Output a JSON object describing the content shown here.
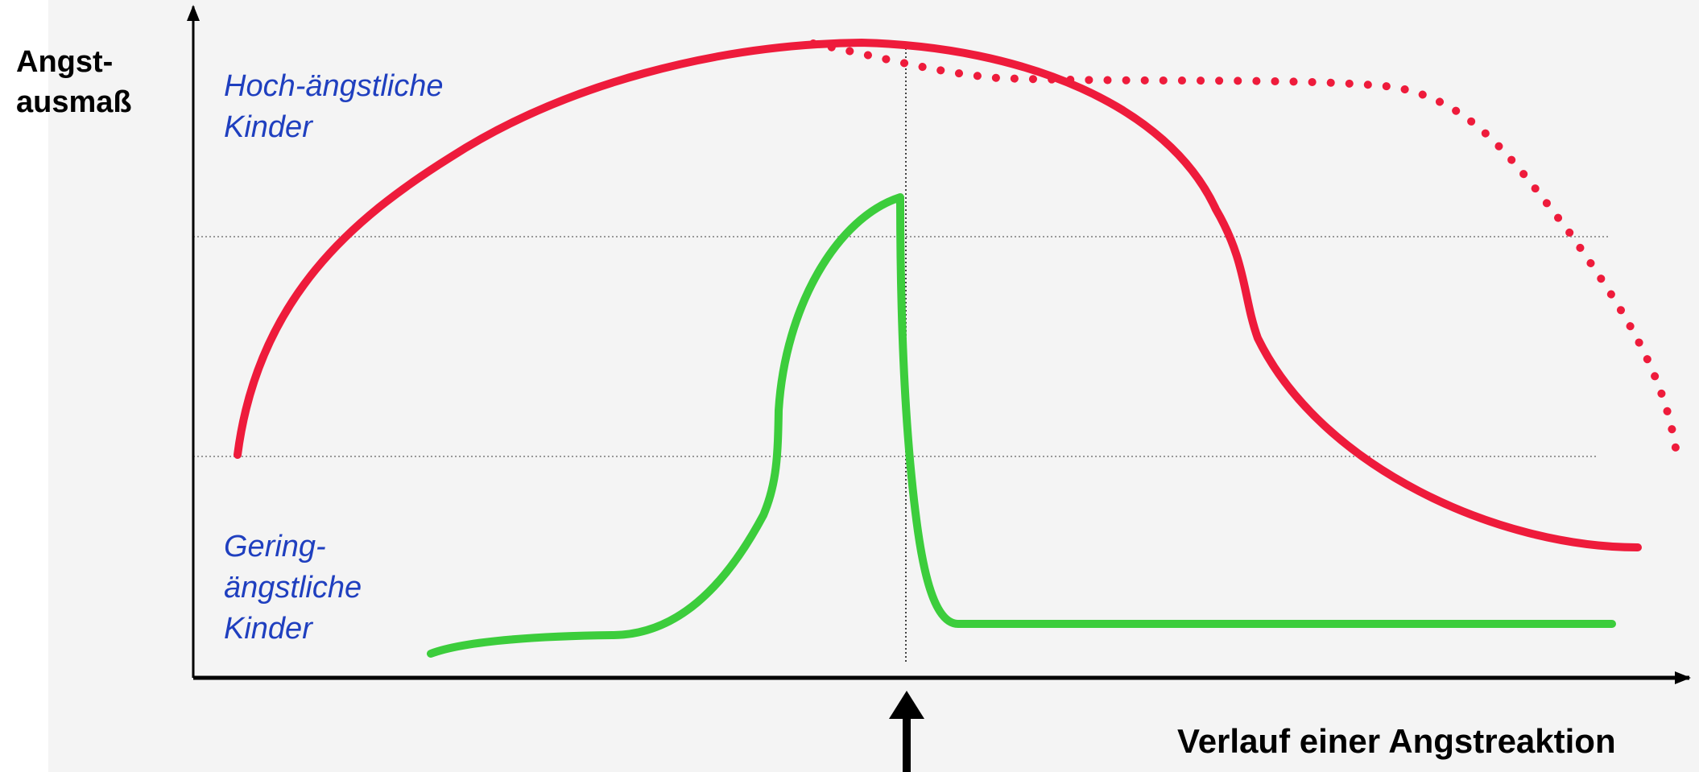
{
  "axes": {
    "y_label_lines": [
      "Angst-",
      "ausmaß"
    ],
    "x_label": "Verlauf einer Angstreaktion"
  },
  "series": {
    "high_anxious_label_lines": [
      "Hoch-ängstliche",
      "Kinder"
    ],
    "low_anxious_label_lines": [
      "Gering-",
      "ängstliche",
      "Kinder"
    ]
  },
  "colors": {
    "high_anxious": "#ee1b3b",
    "low_anxious": "#3ccd3c",
    "axis": "#000000",
    "series_label": "#1f3fbf",
    "panel": "#f4f4f4"
  }
}
